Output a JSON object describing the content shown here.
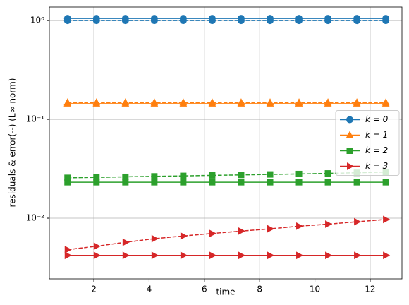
{
  "chart_data": {
    "type": "line",
    "xlabel": "time",
    "ylabel": "residuals & error(--) (L∞ norm)",
    "x": [
      1.047,
      2.094,
      3.142,
      4.189,
      5.236,
      6.283,
      7.33,
      8.378,
      9.425,
      10.472,
      11.519,
      12.566
    ],
    "series": [
      {
        "name": "k = 0",
        "color": "#1f77b4",
        "marker": "circle",
        "values": [
          1.05,
          1.05,
          1.05,
          1.05,
          1.05,
          1.05,
          1.05,
          1.05,
          1.05,
          1.05,
          1.05,
          1.05
        ],
        "dashed_values": [
          1.0,
          1.0,
          1.0,
          1.0,
          1.0,
          1.0,
          1.0,
          1.0,
          1.0,
          1.0,
          1.0,
          1.0
        ]
      },
      {
        "name": "k = 1",
        "color": "#ff7f0e",
        "marker": "triangle-up",
        "values": [
          0.144,
          0.144,
          0.144,
          0.144,
          0.144,
          0.144,
          0.144,
          0.144,
          0.144,
          0.144,
          0.144,
          0.144
        ],
        "dashed_values": [
          0.148,
          0.148,
          0.148,
          0.148,
          0.148,
          0.148,
          0.148,
          0.148,
          0.148,
          0.148,
          0.148,
          0.148
        ]
      },
      {
        "name": "k = 2",
        "color": "#2ca02c",
        "marker": "square",
        "values": [
          0.0231,
          0.0231,
          0.0231,
          0.0231,
          0.0231,
          0.0231,
          0.0231,
          0.0231,
          0.0231,
          0.0231,
          0.0231,
          0.0231
        ],
        "dashed_values": [
          0.0256,
          0.0259,
          0.0262,
          0.0265,
          0.0268,
          0.0271,
          0.0274,
          0.0277,
          0.028,
          0.0284,
          0.0288,
          0.0293
        ]
      },
      {
        "name": "k = 3",
        "color": "#d62728",
        "marker": "triangle-right",
        "values": [
          0.0042,
          0.0042,
          0.0042,
          0.0042,
          0.0042,
          0.0042,
          0.0042,
          0.0042,
          0.0042,
          0.0042,
          0.0042,
          0.0042
        ],
        "dashed_values": [
          0.0048,
          0.0052,
          0.0057,
          0.0062,
          0.0066,
          0.007,
          0.0074,
          0.0078,
          0.0083,
          0.0087,
          0.0092,
          0.0097
        ]
      }
    ],
    "xlim": [
      0.39,
      13.15
    ],
    "xticks": [
      2,
      4,
      6,
      8,
      10,
      12
    ],
    "ylim": [
      0.00243,
      1.37
    ],
    "yscale": "log",
    "yticks": [
      {
        "value": 0.01,
        "label": "10⁻²"
      },
      {
        "value": 0.1,
        "label": "10⁻¹"
      },
      {
        "value": 1,
        "label": "10⁰"
      }
    ],
    "grid": true,
    "legend_loc": "right"
  }
}
